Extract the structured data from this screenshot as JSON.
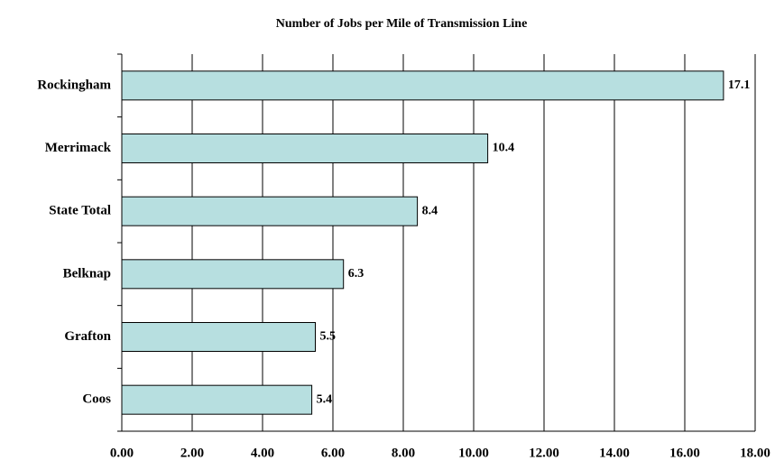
{
  "chart_data": {
    "type": "bar",
    "orientation": "horizontal",
    "title": "Number of Jobs per Mile of Transmission Line",
    "categories": [
      "Rockingham",
      "Merrimack",
      "State Total",
      "Belknap",
      "Grafton",
      "Coos"
    ],
    "values": [
      17.1,
      10.4,
      8.4,
      6.3,
      5.5,
      5.4
    ],
    "color": "#b7dfe0",
    "xlim": [
      0,
      18
    ],
    "xticks": [
      {
        "value": 0,
        "label": "0.00"
      },
      {
        "value": 2,
        "label": "2.00"
      },
      {
        "value": 4,
        "label": "4.00"
      },
      {
        "value": 6,
        "label": "6.00"
      },
      {
        "value": 8,
        "label": "8.00"
      },
      {
        "value": 10,
        "label": "10.00"
      },
      {
        "value": 12,
        "label": "12.00"
      },
      {
        "value": 14,
        "label": "14.00"
      },
      {
        "value": 16,
        "label": "16.00"
      },
      {
        "value": 18,
        "label": "18.00"
      }
    ],
    "grid": true
  }
}
